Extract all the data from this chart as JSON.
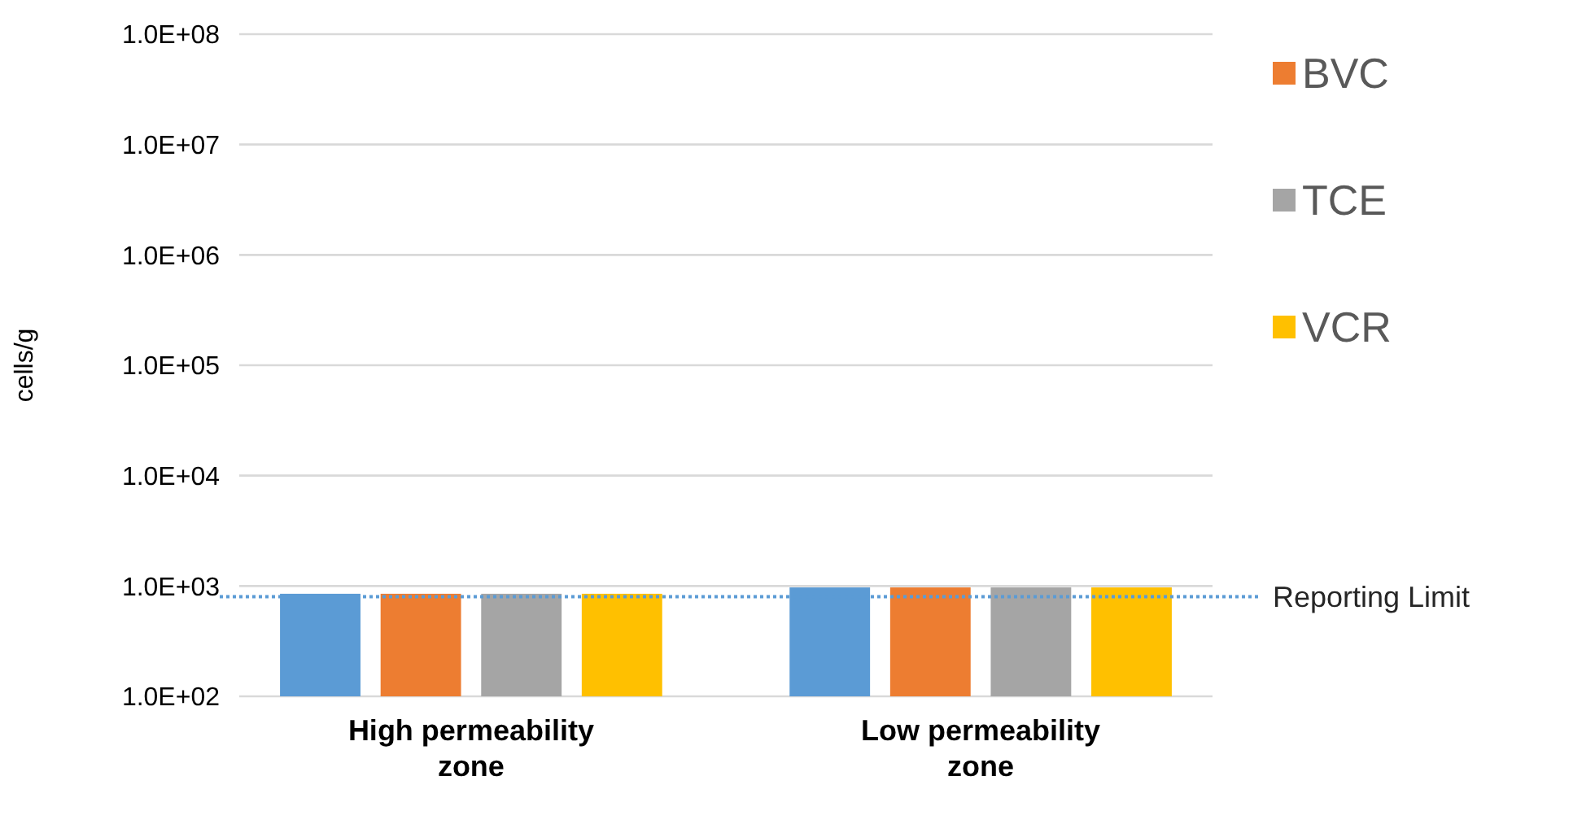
{
  "chart_data": {
    "type": "bar",
    "ylabel": "cells/g",
    "categories": [
      "High permeability zone",
      "Low permeability zone"
    ],
    "series": [
      {
        "color": "#5b9bd5",
        "values": [
          850,
          970
        ]
      },
      {
        "name": "BVC",
        "color": "#ed7d31",
        "values": [
          850,
          970
        ]
      },
      {
        "name": "TCE",
        "color": "#a5a5a5",
        "values": [
          850,
          970
        ]
      },
      {
        "name": "VCR",
        "color": "#ffc000",
        "values": [
          850,
          970
        ]
      }
    ],
    "log": true,
    "ylim": [
      100,
      100000000
    ],
    "yticks": [
      {
        "value": 100,
        "label": "1.0E+02"
      },
      {
        "value": 1000,
        "label": "1.0E+03"
      },
      {
        "value": 10000,
        "label": "1.0E+04"
      },
      {
        "value": 100000,
        "label": "1.0E+05"
      },
      {
        "value": 1000000,
        "label": "1.0E+06"
      },
      {
        "value": 10000000,
        "label": "1.0E+07"
      },
      {
        "value": 100000000,
        "label": "1.0E+08"
      }
    ],
    "grid": "y",
    "legend": "right",
    "ref_lines": [
      {
        "axis": "y",
        "value": 800,
        "label": "Reporting Limit",
        "color": "#5b9bd5",
        "line_style": "dotted"
      }
    ]
  }
}
